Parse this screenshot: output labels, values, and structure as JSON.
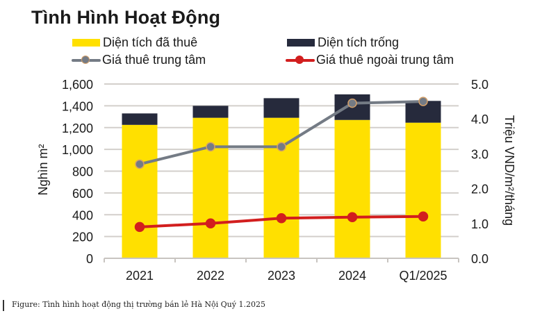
{
  "title": "Tình Hình Hoạt Động",
  "caption": "Figure: Tình hình hoạt động thị trường bán lẻ Hà Nội Quý 1.2025",
  "legend": [
    {
      "label": "Diện tích đã thuê",
      "type": "bar",
      "color": "#FFE000"
    },
    {
      "label": "Diện tích trống",
      "type": "bar",
      "color": "#262A3C"
    },
    {
      "label": "Giá thuê trung tâm",
      "type": "line",
      "color": "#747B85",
      "marker_edge": "#D4A06A"
    },
    {
      "label": "Giá thuê ngoài trung tâm",
      "type": "line",
      "color": "#D21E1E",
      "marker_edge": "#D21E1E"
    }
  ],
  "chart_data": {
    "type": "bar",
    "title": "Tình Hình Hoạt Động",
    "categories": [
      "2021",
      "2022",
      "2023",
      "2024",
      "Q1/2025"
    ],
    "stacked": true,
    "series": [
      {
        "name": "Diện tích đã thuê",
        "type": "bar",
        "axis": "left",
        "color": "#FFE000",
        "values": [
          1225,
          1290,
          1290,
          1270,
          1245
        ]
      },
      {
        "name": "Diện tích trống",
        "type": "bar",
        "axis": "left",
        "color": "#262A3C",
        "values": [
          105,
          110,
          180,
          235,
          200
        ]
      },
      {
        "name": "Giá thuê trung tâm",
        "type": "line",
        "axis": "right",
        "color": "#747B85",
        "values": [
          2.7,
          3.2,
          3.2,
          4.45,
          4.5
        ]
      },
      {
        "name": "Giá thuê ngoài trung tâm",
        "type": "line",
        "axis": "right",
        "color": "#D21E1E",
        "values": [
          0.9,
          1.0,
          1.15,
          1.18,
          1.2
        ]
      }
    ],
    "ylabel": "Nghìn m²",
    "y2label": "Triệu VND/m²/tháng",
    "ylim": [
      0,
      1600
    ],
    "y2lim": [
      0,
      5.0
    ],
    "yticks": [
      "0",
      "200",
      "400",
      "600",
      "800",
      "1,000",
      "1,200",
      "1,400",
      "1,600"
    ],
    "y2ticks": [
      "0.0",
      "1.0",
      "2.0",
      "3.0",
      "4.0",
      "5.0"
    ],
    "grid": true,
    "legend_position": "top"
  }
}
